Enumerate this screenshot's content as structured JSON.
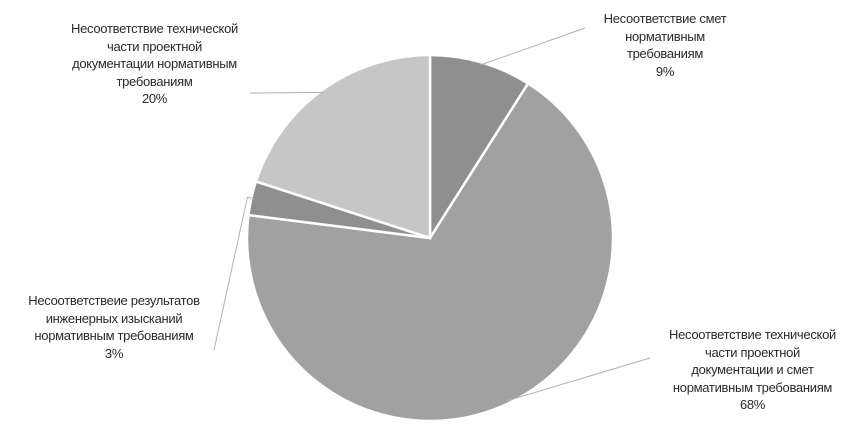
{
  "chart_data": {
    "type": "pie",
    "start_angle_deg": -90,
    "direction": "clockwise",
    "slices": [
      {
        "lines": [
          "Несоответствие смет",
          "нормативным",
          "требованиям"
        ],
        "percent_label": "9%",
        "value": 9,
        "color": "#8f8f8f"
      },
      {
        "lines": [
          "Несоответствие технической",
          "части проектной",
          "документации и смет",
          "нормативным требованиям"
        ],
        "percent_label": "68%",
        "value": 68,
        "color": "#a1a1a1"
      },
      {
        "lines": [
          "Несоответствеие результатов",
          "инженерных изысканий",
          "нормативным требованиям"
        ],
        "percent_label": "3%",
        "value": 3,
        "color": "#8f8f8f"
      },
      {
        "lines": [
          "Несоответствие технической",
          "части проектной",
          "документации нормативным",
          "требованиям"
        ],
        "percent_label": "20%",
        "value": 20,
        "color": "#c6c6c6"
      }
    ]
  }
}
